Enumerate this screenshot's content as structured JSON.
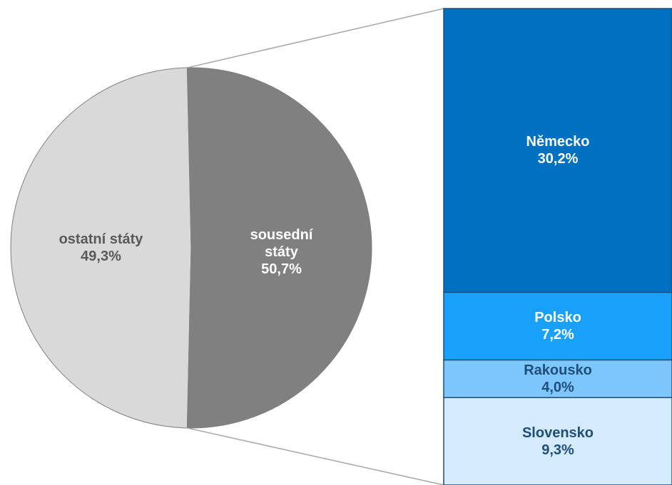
{
  "chart_data": {
    "type": "pie",
    "categories": [
      "ostatní státy",
      "sousední státy"
    ],
    "values": [
      49.3,
      50.7
    ],
    "value_labels": [
      "49,3%",
      "50,7%"
    ],
    "colors": [
      "#d9d9d9",
      "#808080"
    ],
    "label_colors": [
      "#595959",
      "#ffffff"
    ],
    "breakdown": {
      "type": "bar",
      "categories": [
        "Německo",
        "Polsko",
        "Rakousko",
        "Slovensko"
      ],
      "values": [
        30.2,
        7.2,
        4.0,
        9.3
      ],
      "value_labels": [
        "30,2%",
        "7,2%",
        "4,0%",
        "9,3%"
      ],
      "colors": [
        "#0070c0",
        "#18a0fb",
        "#7cc6fd",
        "#d3ebfd"
      ],
      "label_colors": [
        "#ffffff",
        "#ffffff",
        "#1f4e79",
        "#1f4e79"
      ]
    }
  }
}
